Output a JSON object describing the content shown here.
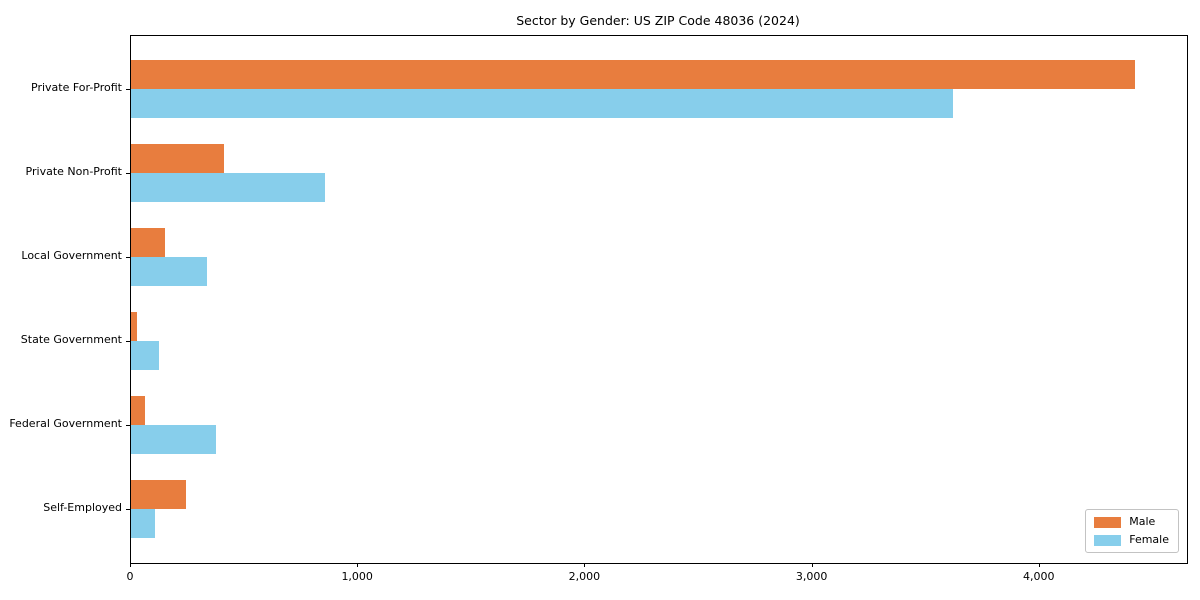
{
  "chart_data": {
    "type": "bar",
    "orientation": "horizontal",
    "title": "Sector by Gender: US ZIP Code 48036 (2024)",
    "categories": [
      "Private For-Profit",
      "Private Non-Profit",
      "Local Government",
      "State Government",
      "Federal Government",
      "Self-Employed"
    ],
    "series": [
      {
        "name": "Male",
        "color": "#e87d3e",
        "values": [
          4420,
          410,
          150,
          26,
          62,
          242
        ]
      },
      {
        "name": "Female",
        "color": "#87ceeb",
        "values": [
          3620,
          855,
          334,
          125,
          374,
          107
        ]
      }
    ],
    "xlim": [
      0,
      4648
    ],
    "xticks": {
      "values": [
        0,
        1000,
        2000,
        3000,
        4000
      ],
      "labels": [
        "0",
        "1,000",
        "2,000",
        "3,000",
        "4,000"
      ]
    },
    "ylabel": "",
    "xlabel": "",
    "grid": false,
    "legend": {
      "position": "lower right"
    },
    "colors": {
      "male": "#e87d3e",
      "female": "#87ceeb",
      "spine": "#000000",
      "background": "#ffffff"
    }
  }
}
